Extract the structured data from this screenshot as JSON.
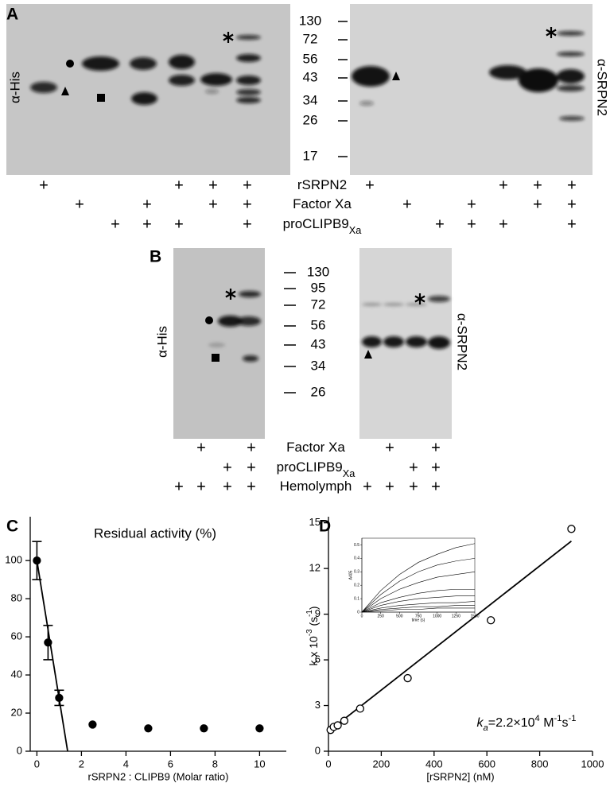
{
  "figure": {
    "A": {
      "label": "A",
      "left_antibody": "α-His",
      "right_antibody": "α-SRPN2",
      "markers": [
        130,
        72,
        56,
        43,
        34,
        26,
        17
      ],
      "rows": [
        {
          "name": "rSRPN2",
          "left": [
            "+",
            null,
            null,
            null,
            "+",
            "+",
            "+"
          ],
          "right": [
            "+",
            null,
            null,
            null,
            "+",
            "+",
            "+"
          ]
        },
        {
          "name": "Factor Xa",
          "left": [
            null,
            "+",
            null,
            "+",
            null,
            "+",
            "+"
          ],
          "right": [
            null,
            "+",
            null,
            "+",
            null,
            "+",
            "+"
          ]
        },
        {
          "name": "proCLIPB9",
          "subscript": "Xa",
          "left": [
            null,
            null,
            "+",
            "+",
            "+",
            null,
            "+"
          ],
          "right": [
            null,
            null,
            "+",
            "+",
            "+",
            null,
            "+"
          ]
        }
      ]
    },
    "B": {
      "label": "B",
      "left_antibody": "α-His",
      "right_antibody": "α-SRPN2",
      "markers": [
        130,
        95,
        72,
        56,
        43,
        34,
        26
      ],
      "rows": [
        {
          "name": "Factor Xa",
          "left": [
            null,
            "+",
            null,
            "+"
          ],
          "right": [
            null,
            "+",
            null,
            "+"
          ]
        },
        {
          "name": "proCLIPB9",
          "subscript": "Xa",
          "left": [
            null,
            null,
            "+",
            "+"
          ],
          "right": [
            null,
            null,
            "+",
            "+"
          ]
        },
        {
          "name": "Hemolymph",
          "left": [
            "+",
            "+",
            "+",
            "+"
          ],
          "right": [
            "+",
            "+",
            "+",
            "+"
          ]
        }
      ]
    }
  },
  "chart_data": [
    {
      "panel": "C",
      "type": "scatter",
      "title": "Residual activity (%)",
      "x_label": "rSRPN2 : CLIPB9 (Molar ratio)",
      "x": [
        0,
        0.5,
        1,
        2.5,
        5,
        7.5,
        10
      ],
      "values": [
        100,
        57,
        28,
        14,
        12,
        12,
        12
      ],
      "errors": [
        10,
        9,
        4,
        null,
        null,
        null,
        null
      ],
      "fit": {
        "x": [
          0,
          1.38
        ],
        "values": [
          100,
          0
        ]
      },
      "xlim": [
        -0.3,
        11.2
      ],
      "ylim": [
        0,
        123
      ],
      "xticks": [
        0,
        2,
        4,
        6,
        8,
        10
      ],
      "yticks": [
        0,
        20,
        40,
        60,
        80,
        100
      ],
      "color": "#000000",
      "marker": "filled"
    },
    {
      "panel": "D",
      "type": "scatter",
      "x_label": "[rSRPN2] (nM)",
      "y_label": [
        {
          "text": "k x 10"
        },
        {
          "text": "-3",
          "sup": true
        },
        {
          "text": " (s"
        },
        {
          "text": "-1",
          "sup": true
        },
        {
          "text": ")"
        }
      ],
      "annotation": [
        {
          "text": "k",
          "italic": true
        },
        {
          "text": "a",
          "sub": true,
          "italic": true
        },
        {
          "text": "=2.2×10"
        },
        {
          "text": "4",
          "sup": true
        },
        {
          "text": " M"
        },
        {
          "text": "-1",
          "sup": true
        },
        {
          "text": "s"
        },
        {
          "text": "-1",
          "sup": true
        }
      ],
      "x": [
        8,
        20,
        35,
        60,
        120,
        300,
        615,
        920
      ],
      "values": [
        1.4,
        1.6,
        1.7,
        2.0,
        2.8,
        4.8,
        8.6,
        14.6
      ],
      "fit": {
        "x": [
          0,
          920
        ],
        "values": [
          1.3,
          13.8
        ]
      },
      "xlim": [
        0,
        1000
      ],
      "ylim": [
        0,
        15.4
      ],
      "xticks": [
        0,
        200,
        400,
        600,
        800,
        1000
      ],
      "yticks": [
        0,
        3,
        6,
        9,
        12,
        15
      ],
      "color": "#000000",
      "marker": "open"
    },
    {
      "type": "line",
      "x_label": "time (s)",
      "y_label": "A405",
      "x": [
        0,
        250,
        500,
        750,
        1000,
        1250,
        1500
      ],
      "series": [
        {
          "color": "#000000",
          "values": [
            0,
            0.16,
            0.28,
            0.37,
            0.43,
            0.48,
            0.51
          ]
        },
        {
          "color": "#000000",
          "values": [
            0,
            0.13,
            0.23,
            0.3,
            0.35,
            0.38,
            0.4
          ]
        },
        {
          "color": "#000000",
          "values": [
            0,
            0.1,
            0.17,
            0.22,
            0.26,
            0.28,
            0.3
          ]
        },
        {
          "color": "#000000",
          "values": [
            0,
            0.07,
            0.11,
            0.14,
            0.16,
            0.17,
            0.17
          ]
        },
        {
          "color": "#000000",
          "values": [
            0,
            0.05,
            0.08,
            0.1,
            0.11,
            0.12,
            0.12
          ]
        },
        {
          "color": "#000000",
          "values": [
            0,
            0.03,
            0.05,
            0.06,
            0.07,
            0.07,
            0.08
          ]
        },
        {
          "color": "#000000",
          "values": [
            0,
            0.02,
            0.03,
            0.04,
            0.04,
            0.05,
            0.05
          ]
        },
        {
          "color": "#000000",
          "values": [
            0,
            0.01,
            0.02,
            0.02,
            0.03,
            0.03,
            0.03
          ]
        }
      ],
      "xlim": [
        0,
        1500
      ],
      "ylim": [
        0,
        0.55
      ],
      "xticks": [
        0,
        250,
        500,
        750,
        1000,
        1250,
        1500
      ],
      "yticks": [
        0,
        0.1,
        0.2,
        0.3,
        0.4,
        0.5
      ]
    }
  ]
}
